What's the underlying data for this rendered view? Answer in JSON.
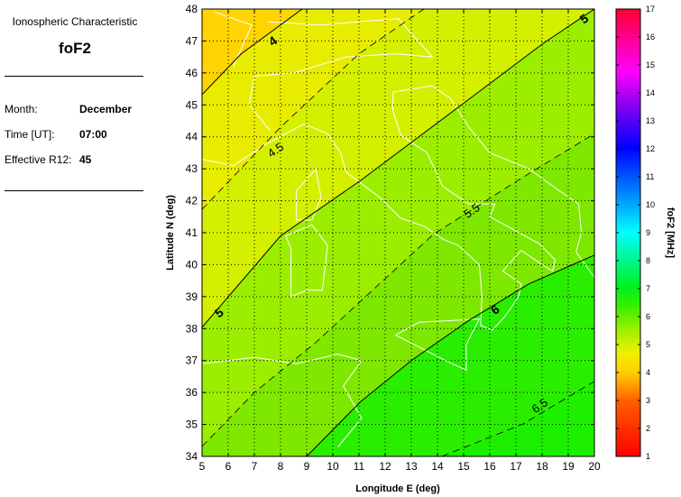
{
  "panel": {
    "heading": "Ionospheric Characteristic",
    "characteristic": "foF2",
    "fields": [
      {
        "label": "Month:",
        "value": "December"
      },
      {
        "label": "Time [UT]:",
        "value": "07:00"
      },
      {
        "label": "Effective R12:",
        "value": "45"
      }
    ]
  },
  "chart_data": {
    "type": "heatmap",
    "subtype": "filled contour map",
    "xlabel": "Longitude E (deg)",
    "ylabel": "Latitude N (deg)",
    "xlim": [
      5,
      20
    ],
    "ylim": [
      34,
      48
    ],
    "xticks": [
      5,
      6,
      7,
      8,
      9,
      10,
      11,
      12,
      13,
      14,
      15,
      16,
      17,
      18,
      19,
      20
    ],
    "yticks": [
      34,
      35,
      36,
      37,
      38,
      39,
      40,
      41,
      42,
      43,
      44,
      45,
      46,
      47,
      48
    ],
    "grid": true,
    "colorbar": {
      "label": "foF2 [MHz]",
      "range": [
        1,
        17
      ],
      "ticks": [
        1,
        2,
        3,
        4,
        5,
        6,
        7,
        8,
        9,
        10,
        11,
        12,
        13,
        14,
        15,
        16,
        17
      ],
      "colormap": "jet-like red-orange-yellow-green-cyan-blue-magenta-red"
    },
    "contours": [
      {
        "level": 4,
        "label": "4",
        "style": "solid",
        "points": [
          [
            5,
            45.32
          ],
          [
            6.5,
            46.6
          ],
          [
            8.83,
            48
          ]
        ],
        "label_at": [
          7.7,
          47.0
        ]
      },
      {
        "level": 4.5,
        "label": "4.5",
        "style": "dashed",
        "points": [
          [
            5,
            41.73
          ],
          [
            8,
            44.3
          ],
          [
            11,
            46.6
          ],
          [
            13.48,
            48
          ]
        ],
        "label_at": [
          7.8,
          43.6
        ]
      },
      {
        "level": 5,
        "label": "5",
        "style": "solid",
        "points": [
          [
            5,
            38.04
          ],
          [
            8,
            40.9
          ],
          [
            11.07,
            42.64
          ],
          [
            15.21,
            45.18
          ],
          [
            18,
            46.9
          ],
          [
            20,
            48
          ]
        ],
        "label_at": [
          [
            5.65,
            38.5
          ],
          [
            19.6,
            47.7
          ]
        ]
      },
      {
        "level": 5.5,
        "label": "5.5",
        "style": "dashed",
        "points": [
          [
            5,
            34.31
          ],
          [
            7,
            36.0
          ],
          [
            9.34,
            37.56
          ],
          [
            13.83,
            40.94
          ],
          [
            17,
            42.6
          ],
          [
            20,
            44.1
          ]
        ],
        "label_at": [
          15.3,
          41.7
        ]
      },
      {
        "level": 6,
        "label": "6",
        "style": "solid",
        "points": [
          [
            9,
            34
          ],
          [
            11.07,
            35.72
          ],
          [
            13,
            37.0
          ],
          [
            15.21,
            38.26
          ],
          [
            17.5,
            39.4
          ],
          [
            20,
            40.3
          ]
        ],
        "label_at": [
          16.2,
          38.6
        ]
      },
      {
        "level": 6.5,
        "label": "6.5",
        "style": "dashed",
        "points": [
          [
            14.17,
            34
          ],
          [
            17.28,
            35.02
          ],
          [
            20,
            36.35
          ]
        ],
        "label_at": [
          17.9,
          35.6
        ]
      }
    ],
    "band_colors": {
      "below_4": "#ffd400",
      "4_to_4.5": "#e8ec00",
      "4.5_to_5": "#d4f000",
      "5_to_5.5": "#9cee00",
      "5.5_to_6": "#7ee800",
      "6_to_6.5": "#2aee00",
      "above_6.5": "#1cf000"
    },
    "coastline_color": "#ffffff"
  }
}
